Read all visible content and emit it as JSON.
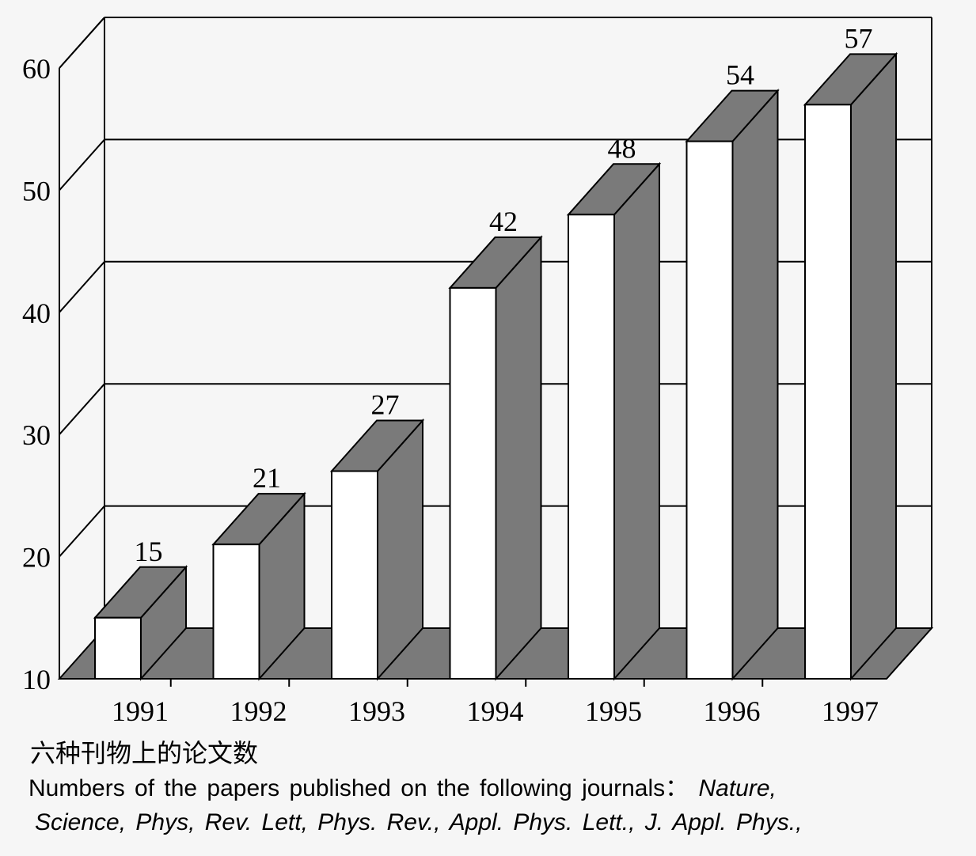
{
  "colors": {
    "background": "#f6f6f6",
    "bar_front": "#ffffff",
    "bar_shaded": "#7a7a7a",
    "floor": "#7a7a7a",
    "line": "#000000"
  },
  "chart_data": {
    "type": "bar",
    "style": "3d",
    "categories": [
      "1991",
      "1992",
      "1993",
      "1994",
      "1995",
      "1996",
      "1997"
    ],
    "values": [
      15,
      21,
      27,
      42,
      48,
      54,
      57
    ],
    "data_labels": [
      "15",
      "21",
      "27",
      "42",
      "48",
      "54",
      "57"
    ],
    "y_ticks": [
      "10",
      "20",
      "30",
      "40",
      "50",
      "60"
    ],
    "ylim": [
      10,
      60
    ],
    "grid": true,
    "legend": "none"
  },
  "caption": {
    "zh": "六种刊物上的论文数",
    "en_line1_prefix": "Numbers of the papers published on the following journals：",
    "en_line1_journal": "Nature,",
    "en_line2": "Science, Phys, Rev. Lett, Phys. Rev., Appl. Phys. Lett., J. Appl. Phys.,"
  }
}
